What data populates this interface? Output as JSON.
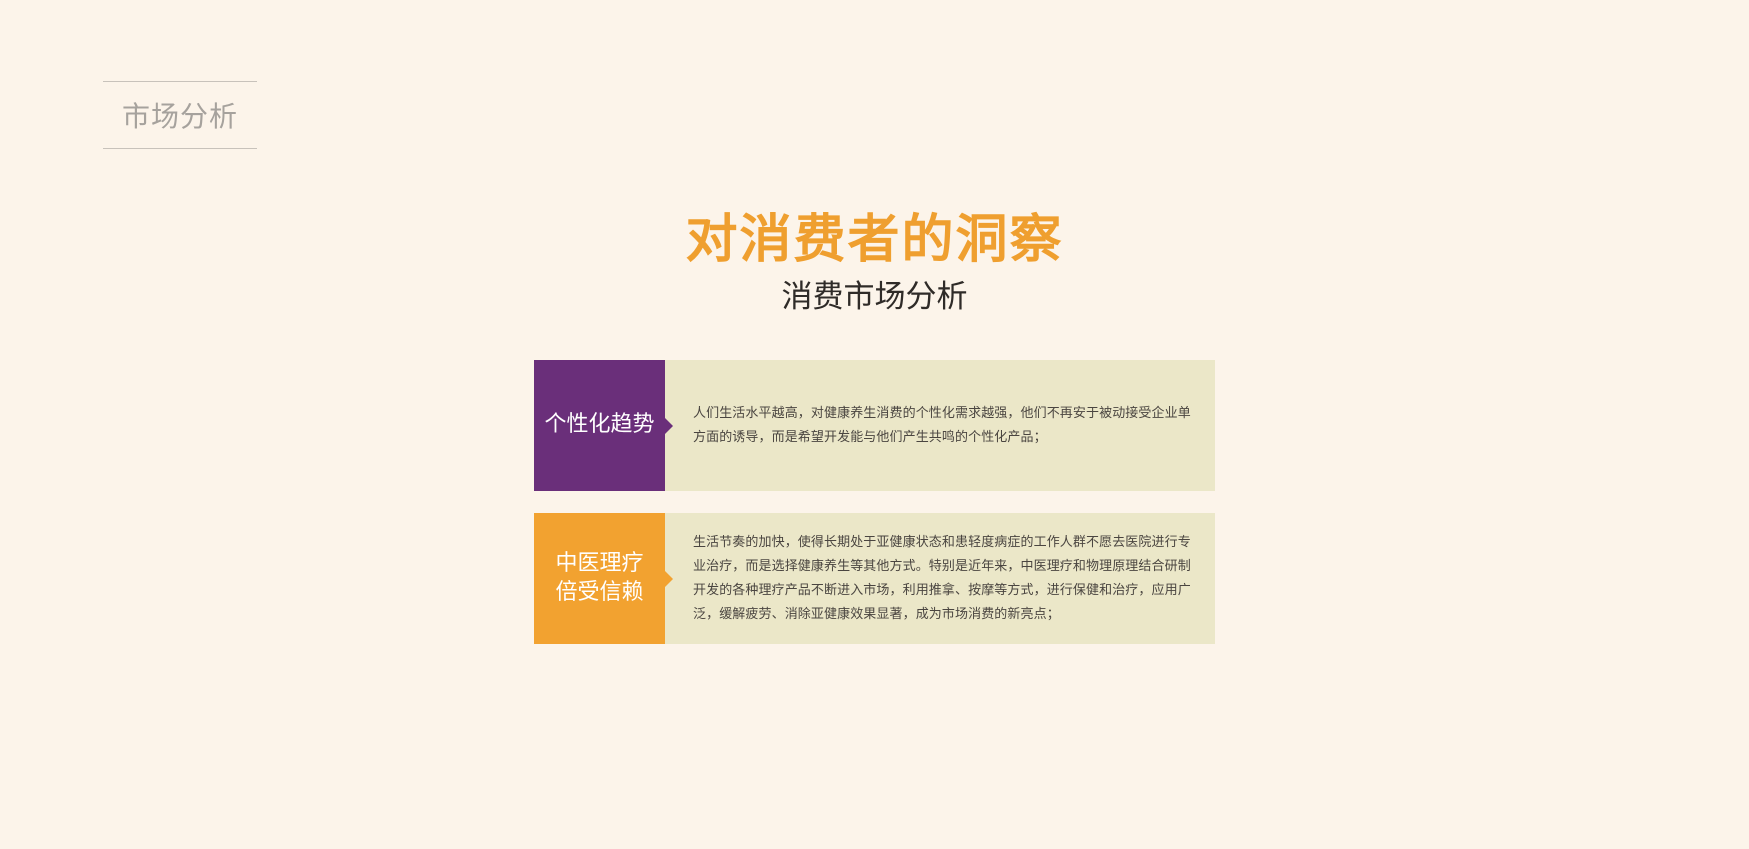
{
  "section_label": "市场分析",
  "title": "对消费者的洞察",
  "subtitle": "消费市场分析",
  "colors": {
    "background": "#fcf4ea",
    "title": "#ef9f2f",
    "card_body": "#ebe7c8"
  },
  "cards": [
    {
      "label": "个性化趋势",
      "accent": "#6a2f7a",
      "text": "人们生活水平越高，对健康养生消费的个性化需求越强，他们不再安于被动接受企业单方面的诱导，而是希望开发能与他们产生共鸣的个性化产品；"
    },
    {
      "label": "中医理疗\n倍受信赖",
      "accent": "#f2a230",
      "text": "生活节奏的加快，使得长期处于亚健康状态和患轻度病症的工作人群不愿去医院进行专业治疗，而是选择健康养生等其他方式。特别是近年来，中医理疗和物理原理结合研制开发的各种理疗产品不断进入市场，利用推拿、按摩等方式，进行保健和治疗，应用广泛，缓解疲劳、消除亚健康效果显著，成为市场消费的新亮点；"
    }
  ]
}
